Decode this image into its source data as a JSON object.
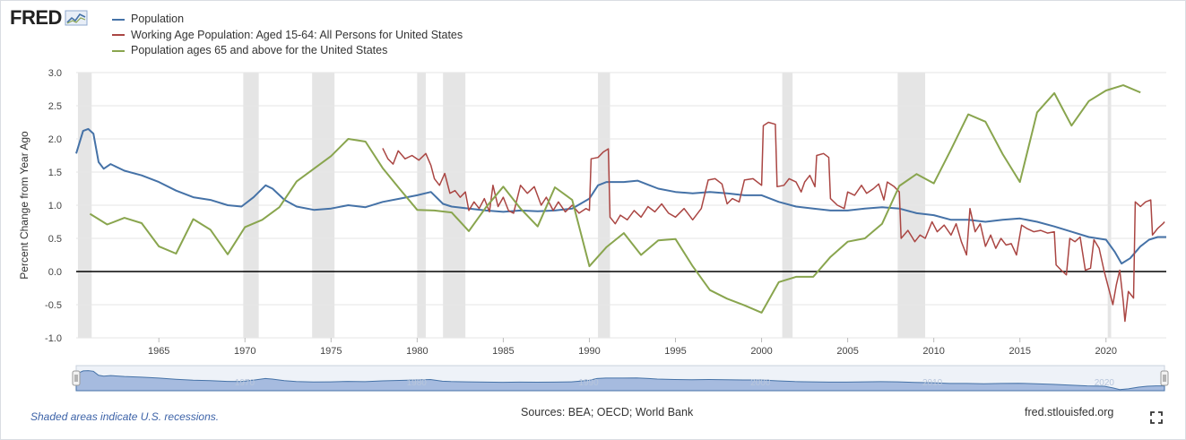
{
  "brand": {
    "logo_text": "FRED"
  },
  "colors": {
    "population": "#4572a7",
    "working_age": "#aa4643",
    "over65": "#89a54e",
    "recession": "#e5e5e5",
    "zero_line": "#000000",
    "navigator_fill": "#9db5dc",
    "navigator_line": "#4572a7"
  },
  "chart_data": {
    "type": "line",
    "title": "",
    "xlabel": "",
    "ylabel": "Percent Change from Year Ago",
    "xlim": [
      1960.2,
      2023.5
    ],
    "ylim": [
      -1.0,
      3.0
    ],
    "yticks": [
      "-1.0",
      "-0.5",
      "0.0",
      "0.5",
      "1.0",
      "1.5",
      "2.0",
      "2.5",
      "3.0"
    ],
    "xticks": [
      "1965",
      "1970",
      "1975",
      "1980",
      "1985",
      "1990",
      "1995",
      "2000",
      "2005",
      "2010",
      "2015",
      "2020"
    ],
    "grid": true,
    "legend_position": "top-left",
    "recessions": [
      [
        1960.3,
        1961.1
      ],
      [
        1969.9,
        1970.8
      ],
      [
        1973.9,
        1975.2
      ],
      [
        1980.0,
        1980.5
      ],
      [
        1981.5,
        1982.8
      ],
      [
        1990.5,
        1991.2
      ],
      [
        2001.2,
        2001.8
      ],
      [
        2007.9,
        2009.5
      ],
      [
        2020.1,
        2020.3
      ]
    ],
    "series": [
      {
        "name": "Population",
        "color": "#4572a7",
        "points": [
          [
            1960.2,
            1.78
          ],
          [
            1960.6,
            2.12
          ],
          [
            1960.9,
            2.15
          ],
          [
            1961.2,
            2.08
          ],
          [
            1961.5,
            1.65
          ],
          [
            1961.8,
            1.55
          ],
          [
            1962.2,
            1.62
          ],
          [
            1963,
            1.52
          ],
          [
            1964,
            1.45
          ],
          [
            1965,
            1.35
          ],
          [
            1966,
            1.22
          ],
          [
            1967,
            1.12
          ],
          [
            1968,
            1.08
          ],
          [
            1969,
            1.0
          ],
          [
            1969.8,
            0.98
          ],
          [
            1970.5,
            1.12
          ],
          [
            1971.2,
            1.3
          ],
          [
            1971.6,
            1.25
          ],
          [
            1972.3,
            1.08
          ],
          [
            1973,
            0.98
          ],
          [
            1974,
            0.93
          ],
          [
            1975,
            0.95
          ],
          [
            1976,
            1.0
          ],
          [
            1977,
            0.97
          ],
          [
            1978,
            1.05
          ],
          [
            1979,
            1.1
          ],
          [
            1980,
            1.15
          ],
          [
            1980.8,
            1.2
          ],
          [
            1981.5,
            1.02
          ],
          [
            1982,
            0.98
          ],
          [
            1983,
            0.95
          ],
          [
            1984,
            0.92
          ],
          [
            1985,
            0.9
          ],
          [
            1986,
            0.92
          ],
          [
            1987,
            0.91
          ],
          [
            1988,
            0.92
          ],
          [
            1989,
            0.95
          ],
          [
            1990,
            1.1
          ],
          [
            1990.5,
            1.3
          ],
          [
            1991,
            1.35
          ],
          [
            1992,
            1.35
          ],
          [
            1992.8,
            1.37
          ],
          [
            1993.5,
            1.3
          ],
          [
            1994,
            1.25
          ],
          [
            1995,
            1.2
          ],
          [
            1996,
            1.18
          ],
          [
            1997,
            1.2
          ],
          [
            1998,
            1.18
          ],
          [
            1999,
            1.15
          ],
          [
            2000,
            1.15
          ],
          [
            2001,
            1.05
          ],
          [
            2002,
            0.98
          ],
          [
            2003,
            0.95
          ],
          [
            2004,
            0.92
          ],
          [
            2005,
            0.92
          ],
          [
            2006,
            0.95
          ],
          [
            2007,
            0.97
          ],
          [
            2008,
            0.95
          ],
          [
            2009,
            0.88
          ],
          [
            2010,
            0.85
          ],
          [
            2011,
            0.78
          ],
          [
            2012,
            0.78
          ],
          [
            2013,
            0.75
          ],
          [
            2014,
            0.78
          ],
          [
            2015,
            0.8
          ],
          [
            2016,
            0.75
          ],
          [
            2017,
            0.68
          ],
          [
            2018,
            0.6
          ],
          [
            2019,
            0.52
          ],
          [
            2020,
            0.48
          ],
          [
            2020.5,
            0.3
          ],
          [
            2020.9,
            0.12
          ],
          [
            2021.4,
            0.2
          ],
          [
            2022,
            0.38
          ],
          [
            2022.5,
            0.48
          ],
          [
            2023,
            0.52
          ],
          [
            2023.5,
            0.52
          ]
        ]
      },
      {
        "name": "Working Age Population: Aged 15-64: All Persons for United States",
        "color": "#aa4643",
        "points": [
          [
            1978.0,
            1.86
          ],
          [
            1978.3,
            1.7
          ],
          [
            1978.6,
            1.62
          ],
          [
            1978.9,
            1.82
          ],
          [
            1979.3,
            1.7
          ],
          [
            1979.7,
            1.75
          ],
          [
            1980.1,
            1.68
          ],
          [
            1980.5,
            1.78
          ],
          [
            1980.8,
            1.6
          ],
          [
            1981.0,
            1.4
          ],
          [
            1981.3,
            1.3
          ],
          [
            1981.6,
            1.48
          ],
          [
            1981.9,
            1.18
          ],
          [
            1982.2,
            1.22
          ],
          [
            1982.5,
            1.12
          ],
          [
            1982.8,
            1.2
          ],
          [
            1983.0,
            0.92
          ],
          [
            1983.3,
            1.05
          ],
          [
            1983.6,
            0.95
          ],
          [
            1983.9,
            1.1
          ],
          [
            1984.2,
            0.9
          ],
          [
            1984.4,
            1.3
          ],
          [
            1984.7,
            0.98
          ],
          [
            1985.0,
            1.12
          ],
          [
            1985.3,
            0.92
          ],
          [
            1985.6,
            0.88
          ],
          [
            1986.0,
            1.3
          ],
          [
            1986.4,
            1.18
          ],
          [
            1986.8,
            1.28
          ],
          [
            1987.2,
            1.0
          ],
          [
            1987.5,
            1.12
          ],
          [
            1987.9,
            0.92
          ],
          [
            1988.2,
            1.05
          ],
          [
            1988.6,
            0.9
          ],
          [
            1989.0,
            1.0
          ],
          [
            1989.4,
            0.88
          ],
          [
            1989.8,
            0.95
          ],
          [
            1990.0,
            0.92
          ],
          [
            1990.1,
            1.7
          ],
          [
            1990.5,
            1.72
          ],
          [
            1990.8,
            1.8
          ],
          [
            1991.1,
            1.85
          ],
          [
            1991.2,
            0.82
          ],
          [
            1991.5,
            0.72
          ],
          [
            1991.8,
            0.85
          ],
          [
            1992.2,
            0.78
          ],
          [
            1992.6,
            0.92
          ],
          [
            1993.0,
            0.82
          ],
          [
            1993.4,
            0.98
          ],
          [
            1993.8,
            0.9
          ],
          [
            1994.2,
            1.02
          ],
          [
            1994.6,
            0.88
          ],
          [
            1995.0,
            0.82
          ],
          [
            1995.5,
            0.95
          ],
          [
            1996.0,
            0.78
          ],
          [
            1996.5,
            0.95
          ],
          [
            1996.9,
            1.38
          ],
          [
            1997.3,
            1.4
          ],
          [
            1997.7,
            1.32
          ],
          [
            1998.0,
            1.02
          ],
          [
            1998.3,
            1.1
          ],
          [
            1998.7,
            1.05
          ],
          [
            1999.0,
            1.38
          ],
          [
            1999.5,
            1.4
          ],
          [
            2000.0,
            1.3
          ],
          [
            2000.1,
            2.2
          ],
          [
            2000.4,
            2.25
          ],
          [
            2000.8,
            2.22
          ],
          [
            2000.9,
            1.28
          ],
          [
            2001.3,
            1.3
          ],
          [
            2001.6,
            1.4
          ],
          [
            2002.0,
            1.35
          ],
          [
            2002.3,
            1.2
          ],
          [
            2002.5,
            1.35
          ],
          [
            2002.8,
            1.45
          ],
          [
            2003.1,
            1.28
          ],
          [
            2003.2,
            1.75
          ],
          [
            2003.6,
            1.78
          ],
          [
            2003.9,
            1.72
          ],
          [
            2004.0,
            1.1
          ],
          [
            2004.4,
            1.0
          ],
          [
            2004.8,
            0.95
          ],
          [
            2005.0,
            1.2
          ],
          [
            2005.4,
            1.15
          ],
          [
            2005.8,
            1.3
          ],
          [
            2006.1,
            1.18
          ],
          [
            2006.5,
            1.25
          ],
          [
            2006.8,
            1.32
          ],
          [
            2007.1,
            1.08
          ],
          [
            2007.3,
            1.35
          ],
          [
            2007.7,
            1.28
          ],
          [
            2008.0,
            1.2
          ],
          [
            2008.1,
            0.5
          ],
          [
            2008.5,
            0.62
          ],
          [
            2008.9,
            0.45
          ],
          [
            2009.2,
            0.55
          ],
          [
            2009.5,
            0.5
          ],
          [
            2009.9,
            0.75
          ],
          [
            2010.2,
            0.6
          ],
          [
            2010.6,
            0.7
          ],
          [
            2011.0,
            0.55
          ],
          [
            2011.3,
            0.72
          ],
          [
            2011.6,
            0.45
          ],
          [
            2011.9,
            0.25
          ],
          [
            2012.1,
            0.95
          ],
          [
            2012.4,
            0.6
          ],
          [
            2012.7,
            0.72
          ],
          [
            2013.0,
            0.38
          ],
          [
            2013.3,
            0.55
          ],
          [
            2013.6,
            0.35
          ],
          [
            2013.9,
            0.5
          ],
          [
            2014.2,
            0.4
          ],
          [
            2014.5,
            0.42
          ],
          [
            2014.8,
            0.25
          ],
          [
            2015.1,
            0.7
          ],
          [
            2015.4,
            0.65
          ],
          [
            2015.8,
            0.6
          ],
          [
            2016.2,
            0.62
          ],
          [
            2016.6,
            0.58
          ],
          [
            2017.0,
            0.6
          ],
          [
            2017.1,
            0.1
          ],
          [
            2017.4,
            0.02
          ],
          [
            2017.7,
            -0.05
          ],
          [
            2017.9,
            0.5
          ],
          [
            2018.2,
            0.45
          ],
          [
            2018.5,
            0.52
          ],
          [
            2018.8,
            0.02
          ],
          [
            2019.1,
            0.05
          ],
          [
            2019.3,
            0.48
          ],
          [
            2019.6,
            0.35
          ],
          [
            2019.9,
            0.0
          ],
          [
            2020.2,
            -0.3
          ],
          [
            2020.4,
            -0.5
          ],
          [
            2020.6,
            -0.2
          ],
          [
            2020.8,
            0.02
          ],
          [
            2021.0,
            -0.45
          ],
          [
            2021.1,
            -0.75
          ],
          [
            2021.3,
            -0.3
          ],
          [
            2021.6,
            -0.4
          ],
          [
            2021.7,
            1.05
          ],
          [
            2022.0,
            0.98
          ],
          [
            2022.3,
            1.05
          ],
          [
            2022.6,
            1.08
          ],
          [
            2022.7,
            0.55
          ],
          [
            2023.0,
            0.65
          ],
          [
            2023.3,
            0.72
          ],
          [
            2023.4,
            0.75
          ]
        ]
      },
      {
        "name": "Population ages 65 and above for the United States",
        "color": "#89a54e",
        "points": [
          [
            1961,
            0.87
          ],
          [
            1962,
            0.71
          ],
          [
            1963,
            0.81
          ],
          [
            1964,
            0.73
          ],
          [
            1965,
            0.38
          ],
          [
            1966,
            0.27
          ],
          [
            1967,
            0.79
          ],
          [
            1968,
            0.63
          ],
          [
            1969,
            0.26
          ],
          [
            1970,
            0.67
          ],
          [
            1971,
            0.78
          ],
          [
            1972,
            0.97
          ],
          [
            1973,
            1.36
          ],
          [
            1974,
            1.55
          ],
          [
            1975,
            1.74
          ],
          [
            1976,
            2.0
          ],
          [
            1977,
            1.96
          ],
          [
            1978,
            1.56
          ],
          [
            1979,
            1.24
          ],
          [
            1980,
            0.93
          ],
          [
            1981,
            0.92
          ],
          [
            1982,
            0.89
          ],
          [
            1983,
            0.61
          ],
          [
            1984,
            0.97
          ],
          [
            1985,
            1.28
          ],
          [
            1986,
            0.95
          ],
          [
            1987,
            0.68
          ],
          [
            1988,
            1.27
          ],
          [
            1989,
            1.08
          ],
          [
            1990,
            0.08
          ],
          [
            1991,
            0.37
          ],
          [
            1992,
            0.58
          ],
          [
            1993,
            0.25
          ],
          [
            1994,
            0.47
          ],
          [
            1995,
            0.49
          ],
          [
            1996,
            0.08
          ],
          [
            1997,
            -0.28
          ],
          [
            1998,
            -0.41
          ],
          [
            1999,
            -0.51
          ],
          [
            2000,
            -0.62
          ],
          [
            2001,
            -0.16
          ],
          [
            2002,
            -0.08
          ],
          [
            2003,
            -0.08
          ],
          [
            2004,
            0.22
          ],
          [
            2005,
            0.45
          ],
          [
            2006,
            0.5
          ],
          [
            2007,
            0.72
          ],
          [
            2008,
            1.29
          ],
          [
            2009,
            1.47
          ],
          [
            2010,
            1.33
          ],
          [
            2011,
            1.84
          ],
          [
            2012,
            2.37
          ],
          [
            2013,
            2.26
          ],
          [
            2014,
            1.77
          ],
          [
            2015,
            1.35
          ],
          [
            2016,
            2.4
          ],
          [
            2017,
            2.69
          ],
          [
            2018,
            2.2
          ],
          [
            2019,
            2.57
          ],
          [
            2020,
            2.73
          ],
          [
            2021,
            2.81
          ],
          [
            2022,
            2.7
          ]
        ]
      }
    ]
  },
  "navigator": {
    "tick_labels": [
      "1970",
      "1980",
      "1990",
      "2000",
      "2010",
      "2020"
    ]
  },
  "footer": {
    "recession_note": "Shaded areas indicate U.S. recessions.",
    "sources": "Sources: BEA; OECD; World Bank",
    "url": "fred.stlouisfed.org"
  }
}
